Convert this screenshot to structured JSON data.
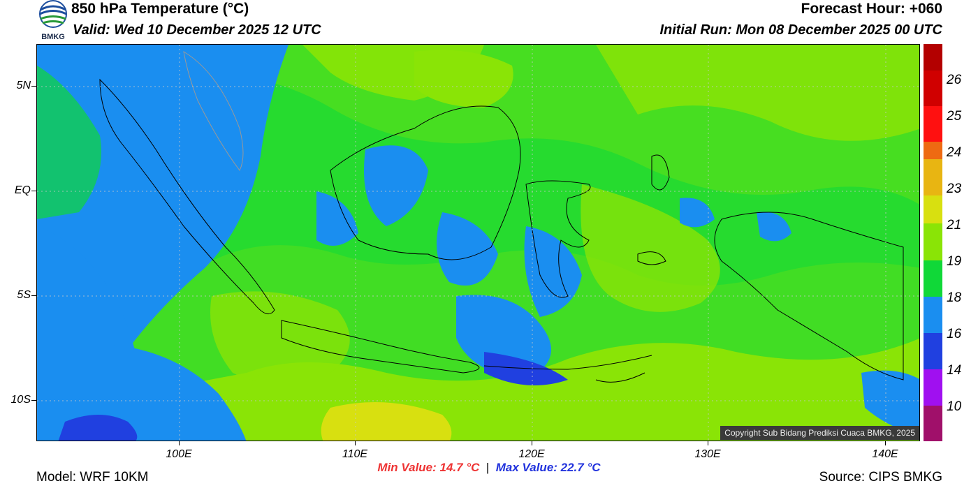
{
  "header": {
    "title": "850 hPa Temperature (°C)",
    "valid": "Valid: Wed 10 December 2025 12 UTC",
    "forecast_hour": "Forecast Hour: +060",
    "initial_run": "Initial Run: Mon 08 December 2025 00 UTC"
  },
  "logo": {
    "text": "BMKG"
  },
  "axes": {
    "y_labels": [
      "5N",
      "EQ",
      "5S",
      "10S"
    ],
    "x_labels": [
      "100E",
      "110E",
      "120E",
      "130E",
      "140E"
    ]
  },
  "colorbar": {
    "labels": [
      "26",
      "25",
      "24",
      "23",
      "21",
      "19",
      "18",
      "16",
      "14",
      "10"
    ],
    "colors": [
      "#b30000",
      "#ff1010",
      "#ee6a12",
      "#e8b512",
      "#d8e010",
      "#8ae406",
      "#10d838",
      "#1a8ef0",
      "#2040e0",
      "#a010f0",
      "#a0106a"
    ]
  },
  "stats": {
    "min_label": "Min Value: 14.7",
    "min_unit": "°C",
    "separator": "|",
    "max_label": "Max Value: 22.7",
    "max_unit": "°C"
  },
  "footer": {
    "model": "Model: WRF 10KM",
    "source": "Source: CIPS BMKG",
    "copyright": "Copyright Sub Bidang Prediksi Cuaca BMKG, 2025"
  }
}
